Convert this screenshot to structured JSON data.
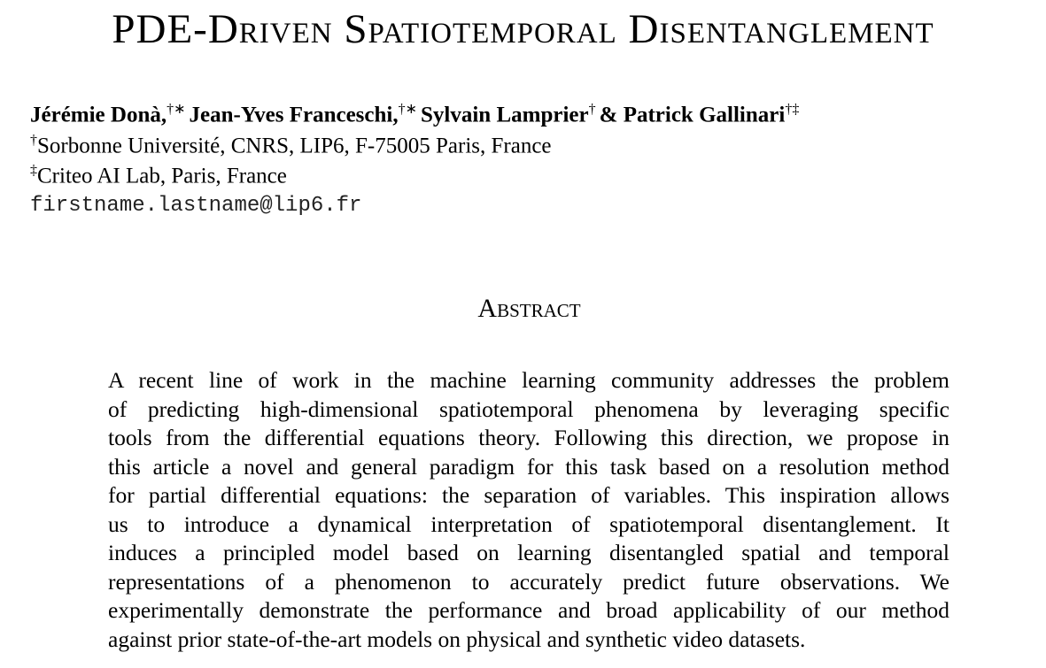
{
  "header": {
    "title": "PDE-Driven Spatiotemporal Disentanglement"
  },
  "authors": [
    {
      "name": "Jérémie Donà,",
      "marks": "†∗"
    },
    {
      "name": "Jean-Yves Franceschi,",
      "marks": "†∗"
    },
    {
      "name": "Sylvain Lamprier",
      "marks": "†"
    },
    {
      "name": "Patrick Gallinari",
      "marks": "†‡"
    }
  ],
  "conjunction": "&",
  "affiliations": [
    {
      "mark": "†",
      "text": "Sorbonne Université, CNRS, LIP6, F-75005 Paris, France"
    },
    {
      "mark": "‡",
      "text": "Criteo AI Lab, Paris, France"
    }
  ],
  "email": "firstname.lastname@lip6.fr",
  "abstract": {
    "heading": "Abstract",
    "lines": [
      "A recent line of work in the machine learning community addresses the problem",
      "of predicting high-dimensional spatiotemporal phenomena by leveraging specific",
      "tools from the differential equations theory. Following this direction, we propose in",
      "this article a novel and general paradigm for this task based on a resolution method",
      "for partial differential equations: the separation of variables. This inspiration allows",
      "us to introduce a dynamical interpretation of spatiotemporal disentanglement. It",
      "induces a principled model based on learning disentangled spatial and temporal",
      "representations of a phenomenon to accurately predict future observations. We",
      "experimentally demonstrate the performance and broad applicability of our method",
      "against prior state-of-the-art models on physical and synthetic video datasets."
    ]
  }
}
